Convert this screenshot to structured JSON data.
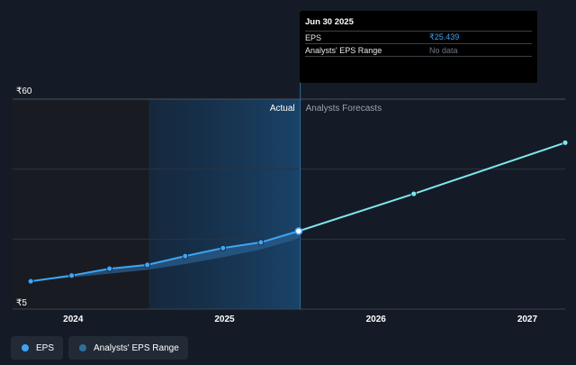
{
  "chart_data": {
    "type": "line",
    "currency_symbol": "₹",
    "y_ticks": [
      {
        "label": "₹60",
        "value": 60
      },
      {
        "label": "₹5",
        "value": 5
      }
    ],
    "ylim": [
      5,
      60
    ],
    "x_ticks": [
      {
        "label": "2024",
        "value": 2024.0
      },
      {
        "label": "2025",
        "value": 2025.0
      },
      {
        "label": "2026",
        "value": 2026.0
      },
      {
        "label": "2027",
        "value": 2027.0
      }
    ],
    "xlim": [
      2023.6,
      2027.25
    ],
    "divider_x": 2025.5,
    "highlight_start_x": 2024.5,
    "region_labels": {
      "actual": "Actual",
      "forecast": "Analysts Forecasts"
    },
    "series": [
      {
        "name": "EPS",
        "color": "#3ea5f5",
        "x": [
          2023.72,
          2023.99,
          2024.24,
          2024.49,
          2024.74,
          2024.99,
          2025.24,
          2025.49
        ],
        "values": [
          12.3,
          13.8,
          15.6,
          16.6,
          18.9,
          21.0,
          22.5,
          25.439
        ]
      },
      {
        "name": "Analysts' EPS Forecast",
        "color": "#7fe6ee",
        "x": [
          2025.49,
          2026.25,
          2027.25
        ],
        "values": [
          25.439,
          35.2,
          48.6
        ]
      }
    ],
    "range_band": {
      "name": "Analysts' EPS Range",
      "color": "#2a5e8e",
      "x": [
        2023.72,
        2023.99,
        2024.24,
        2024.49,
        2024.74,
        2024.99,
        2025.24,
        2025.49
      ],
      "low": [
        12.3,
        13.3,
        14.3,
        15.3,
        16.8,
        18.6,
        20.6,
        23.5
      ],
      "high": [
        12.3,
        13.8,
        15.6,
        16.6,
        18.9,
        21.0,
        22.8,
        25.8
      ]
    }
  },
  "tooltip": {
    "date": "Jun 30 2025",
    "rows": [
      {
        "label": "EPS",
        "value": "₹25.439"
      },
      {
        "label": "Analysts' EPS Range",
        "value": "No data"
      }
    ]
  },
  "legend": {
    "items": [
      {
        "label": "EPS",
        "color": "#3ea5f5"
      },
      {
        "label": "Analysts' EPS Range",
        "color": "#2e6f9e"
      }
    ]
  }
}
